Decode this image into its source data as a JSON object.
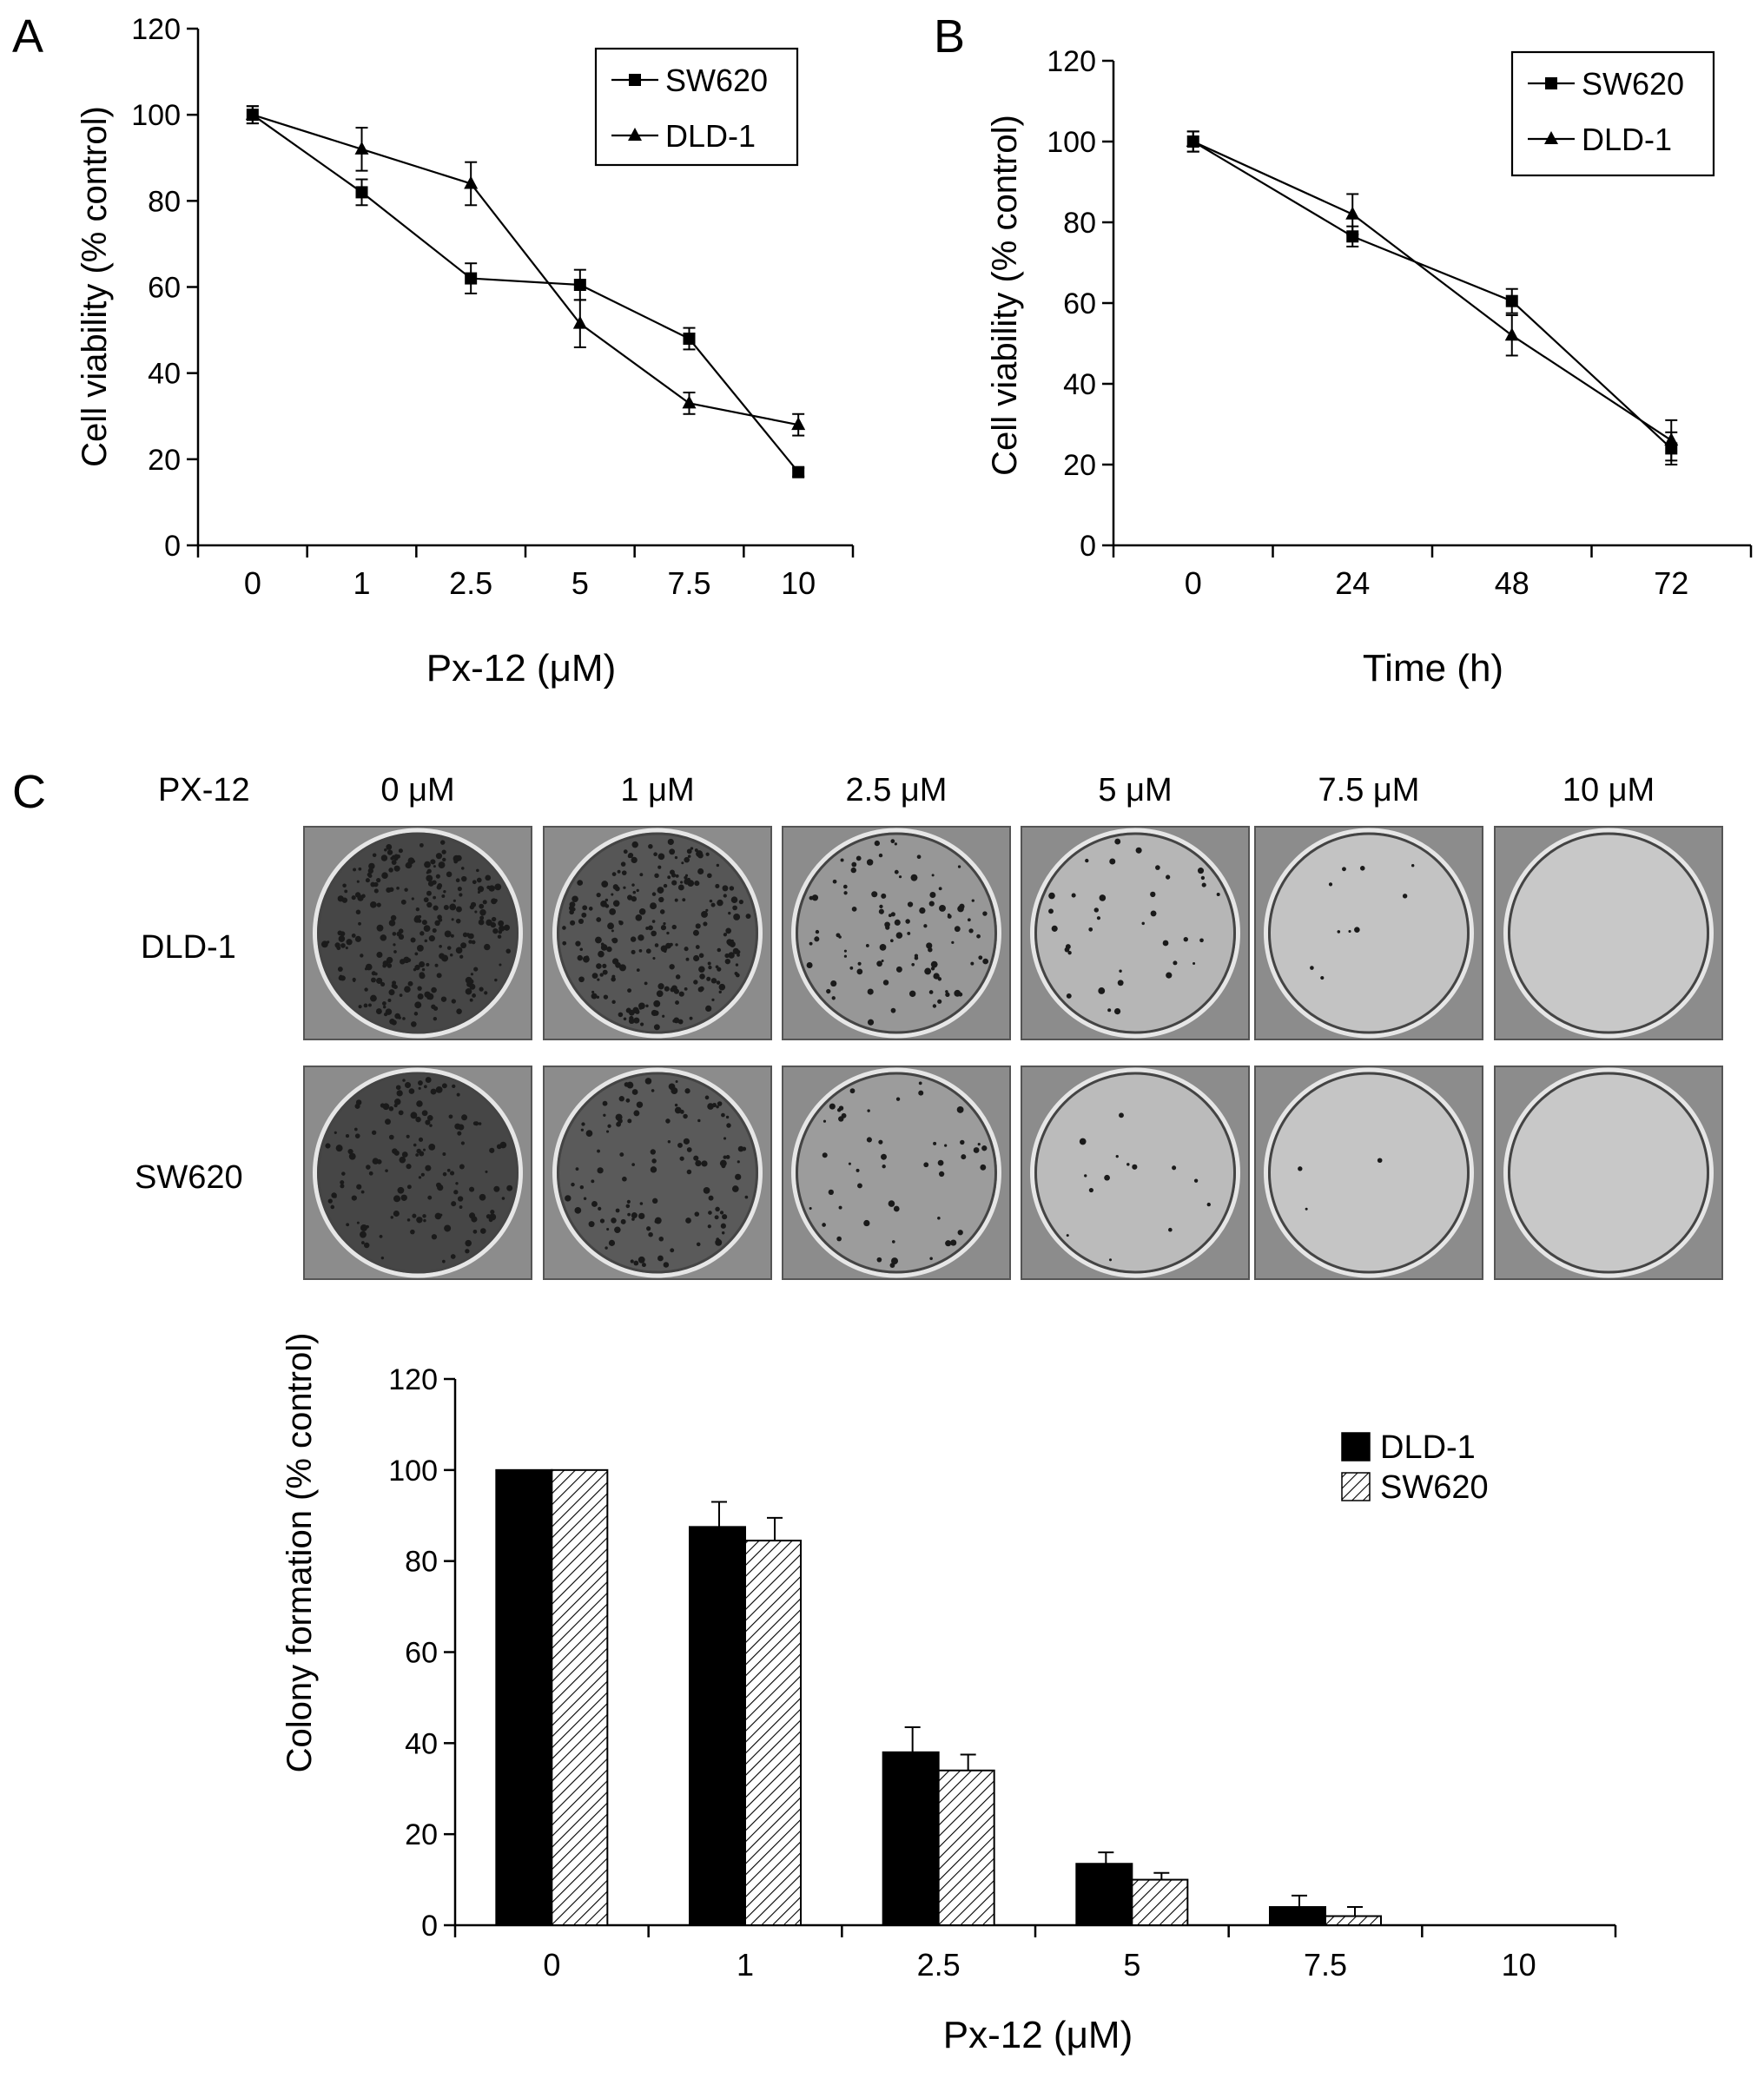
{
  "colors": {
    "ink": "#000000",
    "background": "#ffffff",
    "dish_dark": "#4a4a4a",
    "dish_light": "#c8c8c8",
    "dish_frame": "#9a9a9a"
  },
  "panel_labels": {
    "a": "A",
    "b": "B",
    "c": "C"
  },
  "chart_data": [
    {
      "id": "A",
      "type": "line",
      "title": "",
      "xlabel": "Px-12 (μM)",
      "ylabel": "Cell viability (% control)",
      "categories": [
        "0",
        "1",
        "2.5",
        "5",
        "7.5",
        "10"
      ],
      "ylim": [
        0,
        120
      ],
      "yticks": [
        0,
        20,
        40,
        60,
        80,
        100,
        120
      ],
      "legend_position": "top-right",
      "grid": false,
      "series": [
        {
          "name": "SW620",
          "marker": "square",
          "values": [
            100,
            82,
            62,
            60.5,
            48,
            17
          ],
          "errors": [
            2,
            3,
            3.5,
            3.5,
            2.5,
            1
          ]
        },
        {
          "name": "DLD-1",
          "marker": "triangle",
          "values": [
            100,
            92,
            84,
            51.5,
            33,
            28
          ],
          "errors": [
            2,
            5,
            5,
            5.5,
            2.5,
            2.5
          ]
        }
      ]
    },
    {
      "id": "B",
      "type": "line",
      "title": "",
      "xlabel": "Time (h)",
      "ylabel": "Cell viability (% control)",
      "categories": [
        "0",
        "24",
        "48",
        "72"
      ],
      "ylim": [
        0,
        120
      ],
      "yticks": [
        0,
        20,
        40,
        60,
        80,
        100,
        120
      ],
      "legend_position": "top-right",
      "grid": false,
      "series": [
        {
          "name": "SW620",
          "marker": "square",
          "values": [
            100,
            76.5,
            60.5,
            24
          ],
          "errors": [
            2.5,
            2.5,
            3,
            4
          ]
        },
        {
          "name": "DLD-1",
          "marker": "triangle",
          "values": [
            100,
            82,
            52,
            26
          ],
          "errors": [
            2.5,
            5,
            5,
            5
          ]
        }
      ]
    },
    {
      "id": "C",
      "type": "bar",
      "title": "",
      "xlabel": "Px-12 (μM)",
      "ylabel": "Colony formation (% control)",
      "categories": [
        "0",
        "1",
        "2.5",
        "5",
        "7.5",
        "10"
      ],
      "ylim": [
        0,
        120
      ],
      "yticks": [
        0,
        20,
        40,
        60,
        80,
        100,
        120
      ],
      "legend_position": "top-right",
      "grid": false,
      "series": [
        {
          "name": "DLD-1",
          "fill": "solid",
          "values": [
            100,
            87.5,
            38,
            13.5,
            4,
            0
          ],
          "errors": [
            0,
            5.5,
            5.5,
            2.5,
            2.5,
            0
          ]
        },
        {
          "name": "SW620",
          "fill": "hatched",
          "values": [
            100,
            84.5,
            34,
            10,
            2,
            0
          ],
          "errors": [
            0,
            5,
            3.5,
            1.5,
            2,
            0
          ]
        }
      ]
    }
  ],
  "colony_assay": {
    "row_header": "PX-12",
    "concentrations": [
      "0 μM",
      "1 μM",
      "2.5 μM",
      "5 μM",
      "7.5 μM",
      "10 μM"
    ],
    "rows": [
      {
        "label": "DLD-1",
        "colony_density": [
          1.0,
          0.88,
          0.38,
          0.14,
          0.04,
          0.0
        ]
      },
      {
        "label": "SW620",
        "colony_density": [
          1.0,
          0.85,
          0.34,
          0.1,
          0.02,
          0.0
        ]
      }
    ]
  }
}
